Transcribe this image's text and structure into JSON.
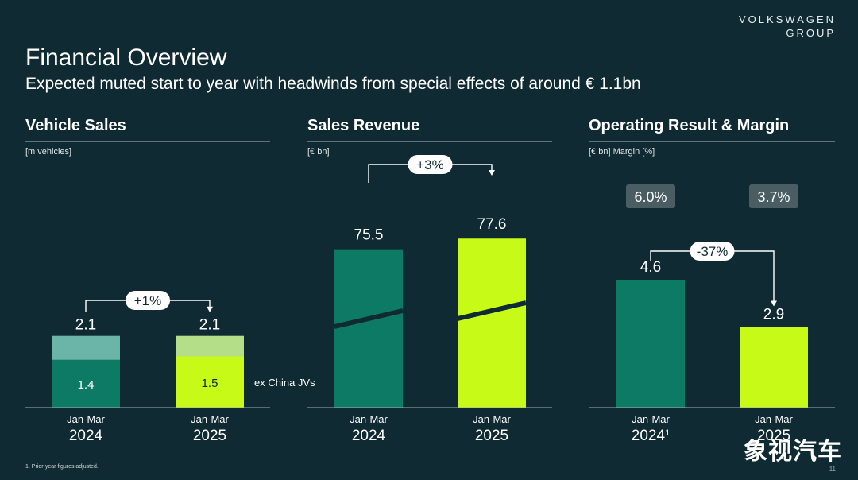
{
  "brand": {
    "line1": "VOLKSWAGEN",
    "line2": "GROUP"
  },
  "header": {
    "title": "Financial Overview",
    "subtitle": "Expected muted start to year with headwinds from special effects of around € 1.1bn"
  },
  "footnote": "1. Prior-year figures adjusted.",
  "page_number": "11",
  "watermark": "象视汽车",
  "colors": {
    "background": "#0f2a33",
    "teal": "#0c7a64",
    "teal_light": "#6ab5a7",
    "lime": "#c8fa17",
    "lime_light": "#b4df88",
    "badge": "#4a5d63"
  },
  "chart_data": [
    {
      "type": "bar",
      "title": "Vehicle Sales",
      "unit_label": "[m vehicles]",
      "categories": [
        "Jan-Mar\n2024",
        "Jan-Mar\n2025"
      ],
      "category_top": [
        "Jan-Mar",
        "Jan-Mar"
      ],
      "category_bottom": [
        "2024",
        "2025"
      ],
      "category_sup": [
        "",
        ""
      ],
      "stacked": true,
      "series": [
        {
          "name": "ex China JVs",
          "values": [
            1.4,
            1.5
          ],
          "labels": [
            "1.4",
            "1.5"
          ]
        },
        {
          "name": "",
          "values": [
            0.7,
            0.6
          ]
        }
      ],
      "totals": [
        2.1,
        2.1
      ],
      "total_labels": [
        "2.1",
        "2.1"
      ],
      "change_label": "+1%",
      "series_annotation": "ex China JVs"
    },
    {
      "type": "bar",
      "title": "Sales Revenue",
      "unit_label": "[€ bn]",
      "categories": [
        "Jan-Mar\n2024",
        "Jan-Mar\n2025"
      ],
      "category_top": [
        "Jan-Mar",
        "Jan-Mar"
      ],
      "category_bottom": [
        "2024",
        "2025"
      ],
      "category_sup": [
        "",
        ""
      ],
      "axis_break": true,
      "values": [
        75.5,
        77.6
      ],
      "value_labels": [
        "75.5",
        "77.6"
      ],
      "change_label": "+3%"
    },
    {
      "type": "bar",
      "title": "Operating Result & Margin",
      "unit_label": "[€ bn] Margin [%]",
      "categories": [
        "Jan-Mar\n2024",
        "Jan-Mar\n2025"
      ],
      "category_top": [
        "Jan-Mar",
        "Jan-Mar"
      ],
      "category_bottom": [
        "2024",
        "2025"
      ],
      "category_sup": [
        "1",
        ""
      ],
      "values": [
        4.6,
        2.9
      ],
      "value_labels": [
        "4.6",
        "2.9"
      ],
      "margins": [
        6.0,
        3.7
      ],
      "margin_labels": [
        "6.0%",
        "3.7%"
      ],
      "change_label": "-37%"
    }
  ]
}
